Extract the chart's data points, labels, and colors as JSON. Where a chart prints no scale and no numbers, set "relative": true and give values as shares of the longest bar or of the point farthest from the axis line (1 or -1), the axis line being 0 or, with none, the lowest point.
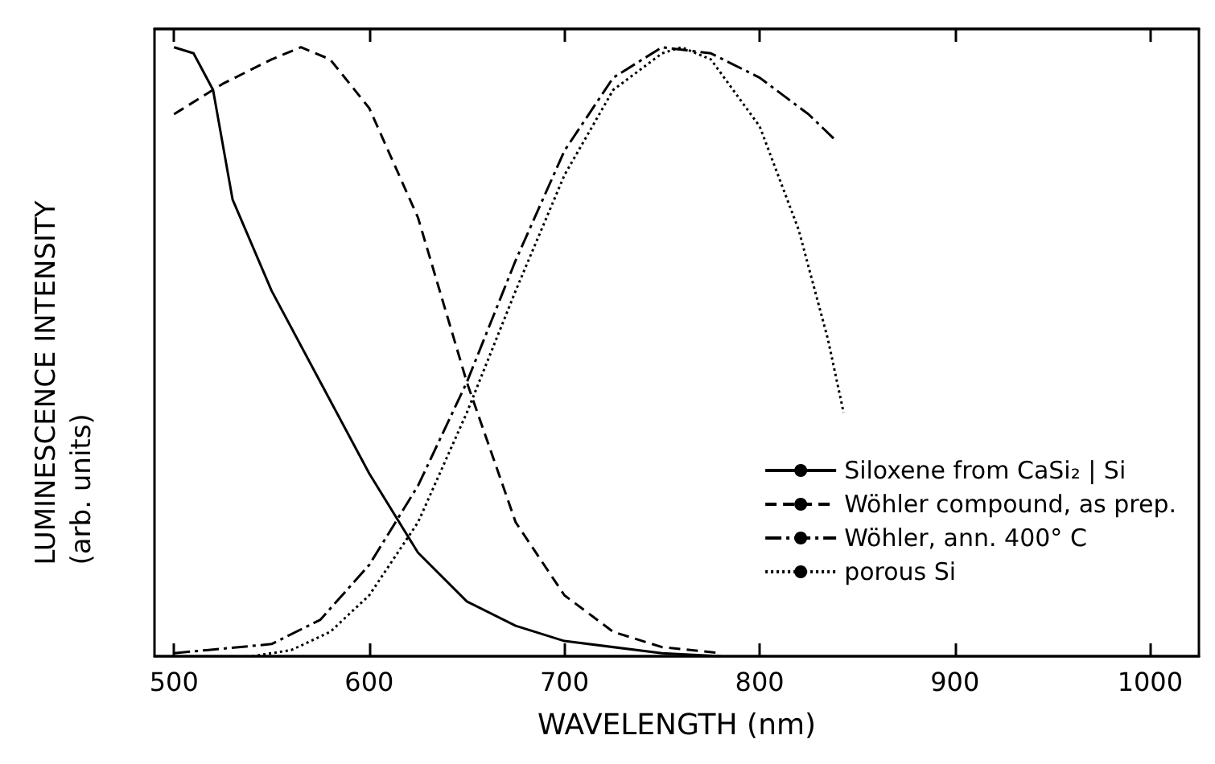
{
  "chart_data": {
    "type": "line",
    "xlabel": "WAVELENGTH (nm)",
    "ylabel": "LUMINESCENCE INTENSITY\n(arb. units)",
    "relative": true,
    "xlim": [
      490,
      1025
    ],
    "xticks": [
      500,
      600,
      700,
      800,
      900,
      1000
    ],
    "grid": false,
    "legend": "bottom right",
    "marker": "none",
    "series": [
      {
        "name": "Siloxene from CaSi₂ | Si",
        "color": "#000000",
        "line_style": "solid",
        "x": [
          500,
          510,
          520,
          530,
          550,
          575,
          600,
          625,
          650,
          675,
          700,
          750,
          780
        ],
        "values": [
          1.0,
          0.99,
          0.93,
          0.75,
          0.6,
          0.45,
          0.3,
          0.17,
          0.09,
          0.05,
          0.025,
          0.005,
          0
        ]
      },
      {
        "name": "Wöhler compound, as prep.",
        "color": "#000000",
        "line_style": "dashed",
        "x": [
          500,
          525,
          550,
          565,
          580,
          600,
          625,
          650,
          675,
          700,
          725,
          750,
          780
        ],
        "values": [
          0.89,
          0.94,
          0.98,
          1.0,
          0.98,
          0.9,
          0.72,
          0.45,
          0.22,
          0.1,
          0.04,
          0.015,
          0.005
        ]
      },
      {
        "name": "Wöhler, ann. 400° C",
        "color": "#000000",
        "line_style": "dashdot",
        "x": [
          500,
          550,
          575,
          600,
          625,
          650,
          675,
          700,
          725,
          750,
          775,
          800,
          825,
          838
        ],
        "values": [
          0.005,
          0.02,
          0.06,
          0.15,
          0.28,
          0.45,
          0.65,
          0.83,
          0.95,
          1.0,
          0.99,
          0.95,
          0.89,
          0.85
        ]
      },
      {
        "name": "porous Si",
        "color": "#000000",
        "line_style": "dotted",
        "x": [
          540,
          560,
          580,
          600,
          625,
          650,
          675,
          700,
          725,
          750,
          760,
          775,
          800,
          820,
          835,
          843
        ],
        "values": [
          0,
          0.01,
          0.04,
          0.1,
          0.22,
          0.4,
          0.6,
          0.79,
          0.93,
          0.99,
          1.0,
          0.98,
          0.87,
          0.7,
          0.52,
          0.4
        ]
      }
    ]
  }
}
